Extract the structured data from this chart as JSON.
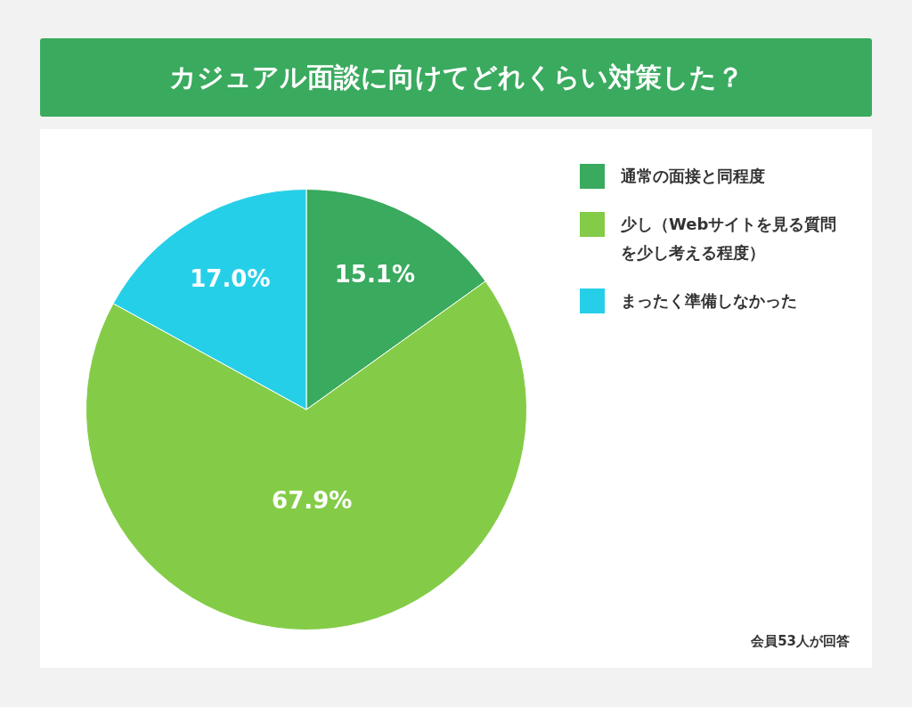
{
  "chart_data": {
    "type": "pie",
    "title": "カジュアル面談に向けてどれくらい対策した？",
    "categories": [
      "通常の面接と同程度",
      "少し（Webサイトを見る質問を少し考える程度）",
      "まったく準備しなかった"
    ],
    "values": [
      15.1,
      67.9,
      17.0
    ],
    "colors": [
      "#3aaa5e",
      "#84cc47",
      "#26cfe8"
    ],
    "value_labels": [
      "15.1%",
      "67.9%",
      "17.0%"
    ],
    "legend": "top right",
    "annotations": [
      "会員53人が回答"
    ]
  }
}
